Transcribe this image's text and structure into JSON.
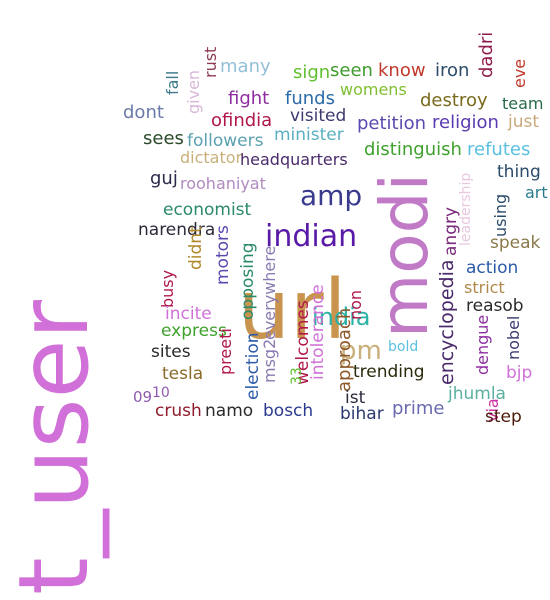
{
  "words": [
    {
      "text": "t_user",
      "color": "#d070d8",
      "vertical": true
    },
    {
      "text": "url",
      "color": "#c8944e",
      "vertical": false
    },
    {
      "text": "modi",
      "color": "#c07ac6",
      "vertical": true
    },
    {
      "text": "indian",
      "color": "#5a1aa8",
      "vertical": false
    },
    {
      "text": "amp",
      "color": "#3a3a8e",
      "vertical": false
    },
    {
      "text": "india",
      "color": "#2ab2a4",
      "vertical": false
    },
    {
      "text": "pm",
      "color": "#c9b07a",
      "vertical": false
    },
    {
      "text": "many",
      "color": "#93c0d8",
      "vertical": false
    },
    {
      "text": "sign",
      "color": "#5fbf2e",
      "vertical": false
    },
    {
      "text": "seen",
      "color": "#3f9b2d",
      "vertical": false
    },
    {
      "text": "know",
      "color": "#c0392b",
      "vertical": false
    },
    {
      "text": "iron",
      "color": "#2c4a6a",
      "vertical": false
    },
    {
      "text": "dadri",
      "color": "#8e1b4c",
      "vertical": true
    },
    {
      "text": "eve",
      "color": "#c0392b",
      "vertical": true
    },
    {
      "text": "fall",
      "color": "#3d7a8a",
      "vertical": true
    },
    {
      "text": "rust",
      "color": "#8e3b52",
      "vertical": true
    },
    {
      "text": "fight",
      "color": "#8e2da0",
      "vertical": false
    },
    {
      "text": "funds",
      "color": "#2a6aa8",
      "vertical": false
    },
    {
      "text": "womens",
      "color": "#7fbf2e",
      "vertical": false
    },
    {
      "text": "destroy",
      "color": "#7a6a1e",
      "vertical": false
    },
    {
      "text": "team",
      "color": "#2a6a4a",
      "vertical": false
    },
    {
      "text": "dont",
      "color": "#6a7aa8",
      "vertical": false
    },
    {
      "text": "given",
      "color": "#d8b8d8",
      "vertical": true
    },
    {
      "text": "ofindia",
      "color": "#b0174a",
      "vertical": false
    },
    {
      "text": "visited",
      "color": "#3a3a6e",
      "vertical": false
    },
    {
      "text": "petition",
      "color": "#5a4ab0",
      "vertical": false
    },
    {
      "text": "religion",
      "color": "#5a3ab0",
      "vertical": false
    },
    {
      "text": "just",
      "color": "#c9a87a",
      "vertical": false
    },
    {
      "text": "sees",
      "color": "#2a4a2a",
      "vertical": false
    },
    {
      "text": "followers",
      "color": "#5aa0b0",
      "vertical": false
    },
    {
      "text": "minister",
      "color": "#5ab0c0",
      "vertical": false
    },
    {
      "text": "distinguish",
      "color": "#3fa12d",
      "vertical": false
    },
    {
      "text": "refutes",
      "color": "#5ac0e0",
      "vertical": false
    },
    {
      "text": "dictator",
      "color": "#c9b07a",
      "vertical": false
    },
    {
      "text": "headquarters",
      "color": "#4a2a6a",
      "vertical": false
    },
    {
      "text": "leadership",
      "color": "#e8c8e0",
      "vertical": true
    },
    {
      "text": "thing",
      "color": "#2a4a6a",
      "vertical": false
    },
    {
      "text": "guj",
      "color": "#2a2a4a",
      "vertical": false
    },
    {
      "text": "roohaniyat",
      "color": "#b08ac0",
      "vertical": false
    },
    {
      "text": "art",
      "color": "#2a7a8e",
      "vertical": false
    },
    {
      "text": "using",
      "color": "#2a4a6a",
      "vertical": true
    },
    {
      "text": "economist",
      "color": "#2a8a6a",
      "vertical": false
    },
    {
      "text": "angry",
      "color": "#7a2a7a",
      "vertical": true
    },
    {
      "text": "narendra",
      "color": "#2a2a3a",
      "vertical": false
    },
    {
      "text": "speak",
      "color": "#8a7a4a",
      "vertical": false
    },
    {
      "text": "didnt",
      "color": "#b0882a",
      "vertical": true
    },
    {
      "text": "motors",
      "color": "#5a4ab0",
      "vertical": true
    },
    {
      "text": "opposing",
      "color": "#2a8a6a",
      "vertical": true
    },
    {
      "text": "everywhere",
      "color": "#8a7ab0",
      "vertical": true
    },
    {
      "text": "non",
      "color": "#b0174a",
      "vertical": true
    },
    {
      "text": "encyclopedia",
      "color": "#4a2a6a",
      "vertical": true
    },
    {
      "text": "action",
      "color": "#2a5aa8",
      "vertical": false
    },
    {
      "text": "busy",
      "color": "#b0174a",
      "vertical": true
    },
    {
      "text": "strict",
      "color": "#b0884a",
      "vertical": false
    },
    {
      "text": "incite",
      "color": "#d070d8",
      "vertical": false
    },
    {
      "text": "reasob",
      "color": "#2a2a2a",
      "vertical": false
    },
    {
      "text": "express",
      "color": "#3fa12d",
      "vertical": false
    },
    {
      "text": "welcomes",
      "color": "#b0174a",
      "vertical": true
    },
    {
      "text": "dengue",
      "color": "#8e2da0",
      "vertical": true
    },
    {
      "text": "nobel",
      "color": "#3a3a6e",
      "vertical": true
    },
    {
      "text": "bold",
      "color": "#5ac0e0",
      "vertical": false
    },
    {
      "text": "approach",
      "color": "#8e5a2a",
      "vertical": true
    },
    {
      "text": "sites",
      "color": "#2a2a2a",
      "vertical": false
    },
    {
      "text": "election",
      "color": "#2a5aa8",
      "vertical": true
    },
    {
      "text": "msg2",
      "color": "#8a7ab0",
      "vertical": true
    },
    {
      "text": "33",
      "color": "#5fbf2e",
      "vertical": true
    },
    {
      "text": "intolerance",
      "color": "#d070d8",
      "vertical": true
    },
    {
      "text": "preeti",
      "color": "#b0174a",
      "vertical": true
    },
    {
      "text": "tesla",
      "color": "#8a6a2a",
      "vertical": false
    },
    {
      "text": "trending",
      "color": "#2a2a0a",
      "vertical": false
    },
    {
      "text": "bjp",
      "color": "#d070d8",
      "vertical": false
    },
    {
      "text": "09",
      "color": "#8e5ab0",
      "vertical": false
    },
    {
      "text": "10",
      "color": "#8e5ab0",
      "vertical": false
    },
    {
      "text": "ist",
      "color": "#2a2a3a",
      "vertical": false
    },
    {
      "text": "jhumla",
      "color": "#5ab0a0",
      "vertical": false
    },
    {
      "text": "crush",
      "color": "#8e1b2c",
      "vertical": false
    },
    {
      "text": "namo",
      "color": "#2a2a2a",
      "vertical": false
    },
    {
      "text": "bosch",
      "color": "#2a3a8e",
      "vertical": false
    },
    {
      "text": "prime",
      "color": "#6a6ab0",
      "vertical": false
    },
    {
      "text": "bihar",
      "color": "#2a3a6e",
      "vertical": false
    },
    {
      "text": "via",
      "color": "#d030a0",
      "vertical": true
    },
    {
      "text": "step",
      "color": "#4a1a0a",
      "vertical": false
    }
  ]
}
